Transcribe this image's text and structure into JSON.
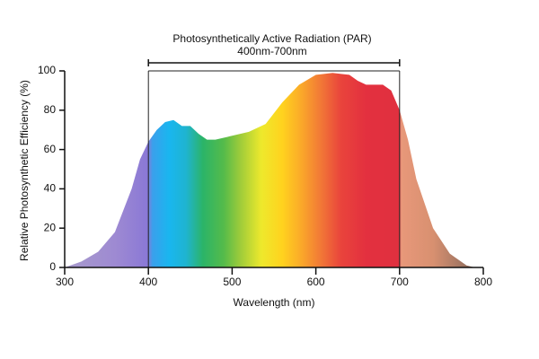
{
  "chart_data": {
    "type": "area",
    "title": "Photosynthetically Active Radiation (PAR)",
    "subtitle": "400nm-700nm",
    "x_label": "Wavelength (nm)",
    "y_label": "Relative Photosynthetic Efficiency (%)",
    "x": [
      300,
      320,
      340,
      360,
      380,
      390,
      400,
      410,
      420,
      430,
      440,
      450,
      460,
      470,
      480,
      500,
      520,
      540,
      560,
      580,
      600,
      620,
      640,
      650,
      660,
      680,
      690,
      700,
      710,
      720,
      740,
      760,
      780,
      790
    ],
    "y": [
      0,
      3,
      8,
      18,
      40,
      55,
      64,
      70,
      74,
      75,
      72,
      72,
      68,
      65,
      65,
      67,
      69,
      73,
      84,
      93,
      98,
      99,
      98,
      95,
      93,
      93,
      90,
      80,
      65,
      45,
      20,
      7,
      1,
      0
    ],
    "par_range": [
      400,
      700
    ],
    "xlim": [
      300,
      800
    ],
    "ylim": [
      0,
      100
    ],
    "xticks": [
      300,
      400,
      500,
      600,
      700,
      800
    ],
    "yticks": [
      0,
      20,
      40,
      60,
      80,
      100
    ]
  }
}
